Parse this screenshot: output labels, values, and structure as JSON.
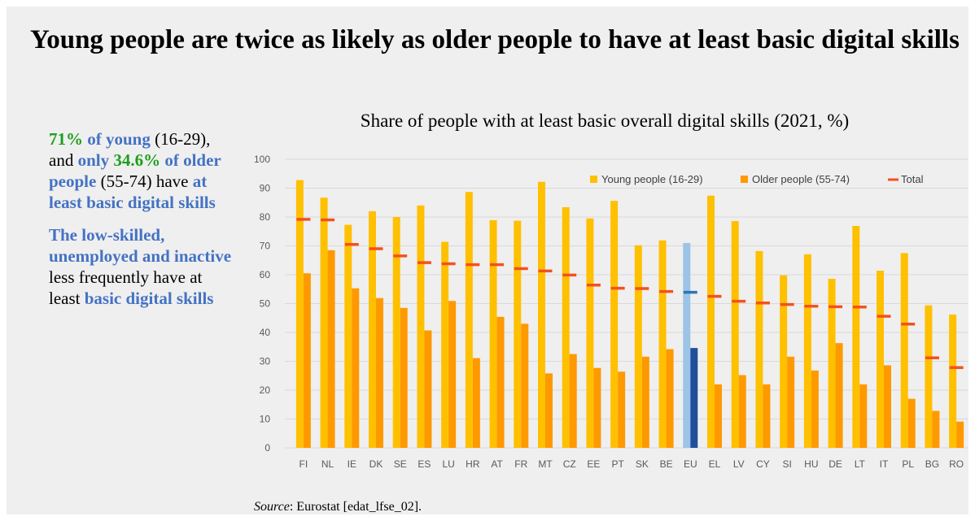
{
  "headline": "Young people are twice as likely as older people to have at least basic digital skills",
  "side_text": {
    "p1_green_1": "71%",
    "p1_blue_1": " of young",
    "p1_plain_1": " (16-29), and ",
    "p1_blue_2": "only",
    "p1_green_2": "34.6%",
    "p1_blue_3": " of older people",
    "p1_plain_2": " (55-74) have ",
    "p1_blue_4": "at least basic digital skills",
    "p2_blue_1": "The low-skilled, unemployed and inactive",
    "p2_plain_1": " less frequently have at least ",
    "p2_blue_2": "basic digital skills"
  },
  "source": {
    "label": "Source",
    "text": ": Eurostat [edat_lfse_02]."
  },
  "colors": {
    "young": "#ffc000",
    "older": "#ff9900",
    "total": "#f4511e",
    "eu_young": "#9dc3e6",
    "eu_older": "#1f4e9a",
    "eu_total": "#2e75b6",
    "highlight_blue": "#4472c4",
    "highlight_green": "#1e9e1e"
  },
  "chart_data": {
    "type": "bar",
    "title": "Share of people with at least basic overall digital skills (2021, %)",
    "xlabel": "",
    "ylabel": "",
    "ylim": [
      0,
      100
    ],
    "yticks": [
      0,
      10,
      20,
      30,
      40,
      50,
      60,
      70,
      80,
      90,
      100
    ],
    "grid": true,
    "legend_position": "top-right",
    "highlighted_category": "EU",
    "categories": [
      "FI",
      "NL",
      "IE",
      "DK",
      "SE",
      "ES",
      "LU",
      "HR",
      "AT",
      "FR",
      "MT",
      "CZ",
      "EE",
      "PT",
      "SK",
      "BE",
      "EU",
      "EL",
      "LV",
      "CY",
      "SI",
      "HU",
      "DE",
      "LT",
      "IT",
      "PL",
      "BG",
      "RO"
    ],
    "series": [
      {
        "name": "Young people (16-29)",
        "kind": "bar",
        "values": [
          92.8,
          86.7,
          77.3,
          82,
          80,
          84,
          71.4,
          88.7,
          78.9,
          78.7,
          92.2,
          83.4,
          79.5,
          85.6,
          70.2,
          71.9,
          71,
          87.4,
          78.6,
          68.2,
          59.8,
          67.1,
          58.6,
          76.9,
          61.4,
          67.5,
          49.4,
          46.2
        ]
      },
      {
        "name": "Older people (55-74)",
        "kind": "bar",
        "values": [
          60.5,
          68.5,
          55.3,
          51.9,
          48.5,
          40.7,
          50.9,
          31.1,
          45.4,
          43,
          25.8,
          32.5,
          27.7,
          26.4,
          31.6,
          34.2,
          34.6,
          22,
          25.2,
          22,
          31.6,
          26.8,
          36.3,
          22,
          28.6,
          17,
          12.8,
          9.1
        ]
      },
      {
        "name": "Total",
        "kind": "marker",
        "values": [
          79.2,
          79,
          70.5,
          69,
          66.5,
          64.2,
          63.8,
          63.5,
          63.5,
          62.1,
          61.3,
          59.9,
          56.4,
          55.3,
          55.2,
          54.2,
          53.9,
          52.5,
          50.8,
          50.2,
          49.7,
          49.1,
          48.9,
          48.8,
          45.6,
          42.9,
          31.2,
          27.8
        ]
      }
    ]
  }
}
